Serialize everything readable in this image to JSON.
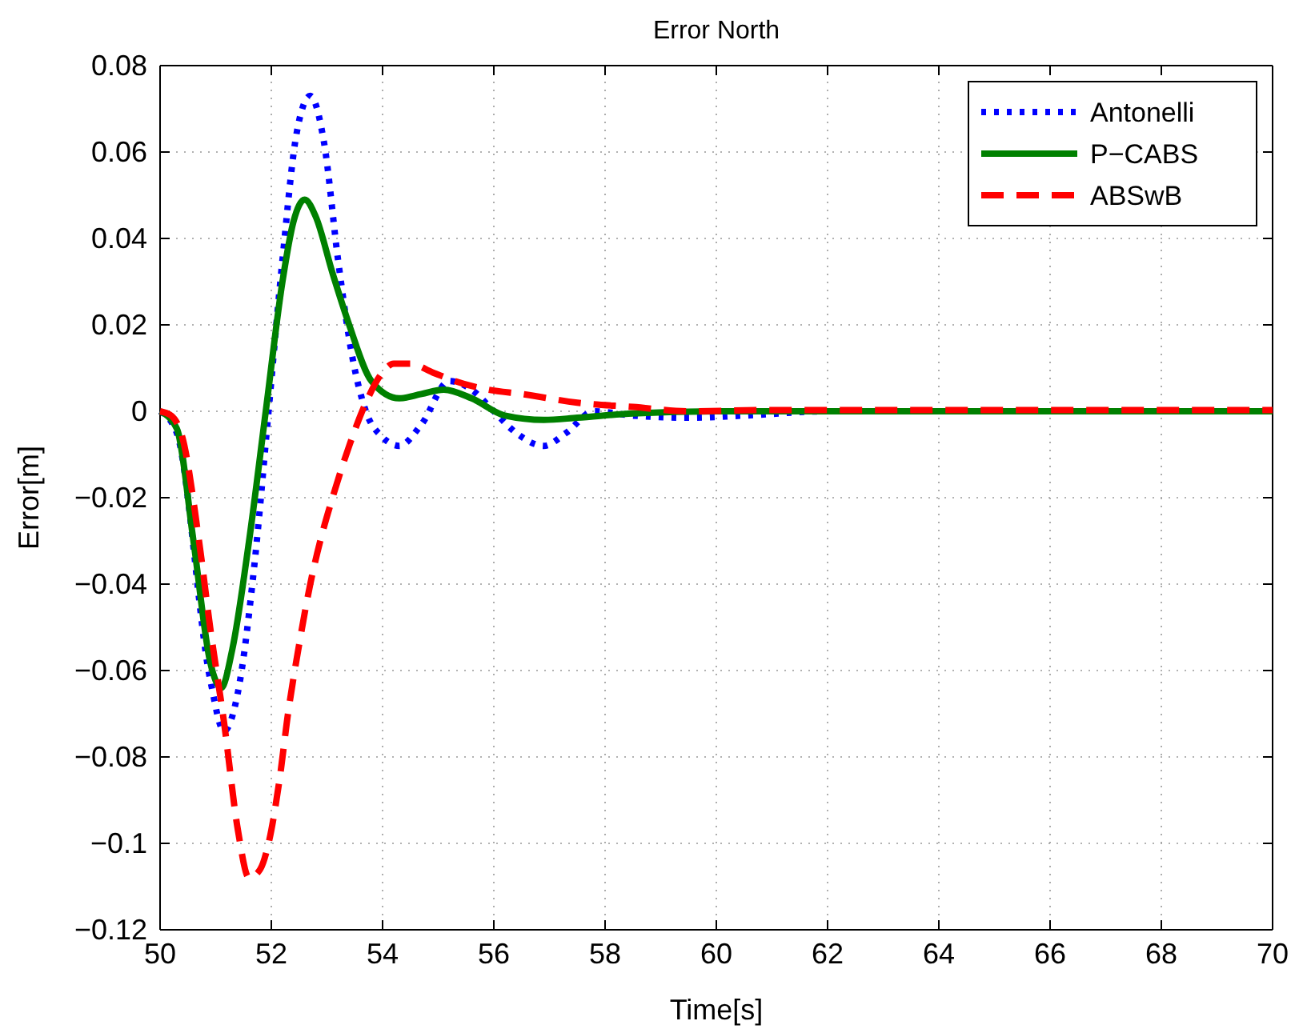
{
  "chart_data": {
    "type": "line",
    "title": "Error North",
    "xlabel": "Time[s]",
    "ylabel": "Error[m]",
    "xlim": [
      50,
      70
    ],
    "xticks": [
      50,
      52,
      54,
      56,
      58,
      60,
      62,
      64,
      66,
      68,
      70
    ],
    "ylim": [
      -0.12,
      0.08
    ],
    "yticks": [
      -0.12,
      -0.1,
      -0.08,
      -0.06,
      -0.04,
      -0.02,
      0,
      0.02,
      0.04,
      0.06,
      0.08
    ],
    "grid": true,
    "legend": "top right",
    "marker": "none",
    "series": [
      {
        "name": "Antonelli",
        "color": "#0000ff",
        "line_style": "dotted",
        "x": [
          50,
          50.3,
          50.9,
          51.15,
          51.4,
          51.7,
          51.95,
          52.2,
          52.45,
          52.7,
          52.95,
          53.2,
          53.45,
          53.7,
          54,
          54.3,
          54.7,
          55.2,
          55.6,
          56,
          56.4,
          56.9,
          57.3,
          57.8,
          58.5,
          59.5,
          60.5,
          62,
          64,
          70
        ],
        "values": [
          0,
          -0.005,
          -0.062,
          -0.074,
          -0.065,
          -0.035,
          0,
          0.035,
          0.064,
          0.073,
          0.062,
          0.035,
          0.013,
          0,
          -0.006,
          -0.008,
          -0.003,
          0.007,
          0.005,
          0,
          -0.005,
          -0.008,
          -0.005,
          0,
          -0.001,
          -0.0015,
          -0.001,
          0,
          0,
          0
        ]
      },
      {
        "name": "P−CABS",
        "color": "#008000",
        "line_style": "solid",
        "x": [
          50,
          50.3,
          50.6,
          50.9,
          51.1,
          51.3,
          51.6,
          51.9,
          52.2,
          52.4,
          52.6,
          52.8,
          53.1,
          53.4,
          53.8,
          54.3,
          54.7,
          55.1,
          55.6,
          56.2,
          56.9,
          57.5,
          58.5,
          60,
          62,
          70
        ],
        "values": [
          0,
          -0.004,
          -0.03,
          -0.058,
          -0.064,
          -0.055,
          -0.03,
          0,
          0.03,
          0.044,
          0.049,
          0.045,
          0.032,
          0.02,
          0.007,
          0.003,
          0.004,
          0.005,
          0.003,
          -0.001,
          -0.002,
          -0.0015,
          -0.0005,
          0,
          0,
          0
        ]
      },
      {
        "name": "ABSwB",
        "color": "#ff0000",
        "line_style": "dashed",
        "x": [
          50,
          50.2,
          50.4,
          50.7,
          50.9,
          51.15,
          51.4,
          51.6,
          51.8,
          51.95,
          52.15,
          52.3,
          52.5,
          52.7,
          52.9,
          53.1,
          53.4,
          53.7,
          54,
          54.2,
          54.5,
          54.9,
          55.3,
          55.9,
          56.5,
          57.5,
          58.5,
          59.5,
          61,
          63,
          70
        ],
        "values": [
          0,
          -0.001,
          -0.006,
          -0.03,
          -0.05,
          -0.072,
          -0.097,
          -0.108,
          -0.106,
          -0.1,
          -0.085,
          -0.07,
          -0.054,
          -0.04,
          -0.029,
          -0.02,
          -0.008,
          0.002,
          0.009,
          0.011,
          0.011,
          0.009,
          0.007,
          0.005,
          0.004,
          0.002,
          0.001,
          0,
          0.0003,
          0.0003,
          0.0003
        ]
      }
    ]
  }
}
